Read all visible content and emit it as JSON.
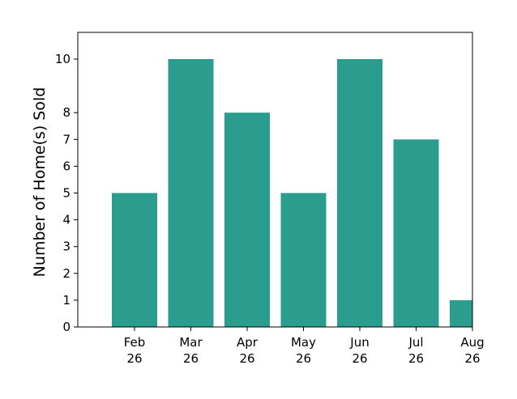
{
  "chart_data": {
    "type": "bar",
    "categories": [
      [
        "Feb",
        "26"
      ],
      [
        "Mar",
        "26"
      ],
      [
        "Apr",
        "26"
      ],
      [
        "May",
        "26"
      ],
      [
        "Jun",
        "26"
      ],
      [
        "Jul",
        "26"
      ],
      [
        "Aug",
        "26"
      ]
    ],
    "values": [
      5,
      10,
      8,
      5,
      10,
      7,
      1
    ],
    "ylabel": "Number of Home(s) Sold",
    "xlabel": "",
    "ylim": [
      0,
      10
    ],
    "yticks": [
      0,
      1,
      2,
      3,
      4,
      5,
      6,
      7,
      8,
      10
    ],
    "bar_color": "#2a9d8f",
    "grid": false
  }
}
